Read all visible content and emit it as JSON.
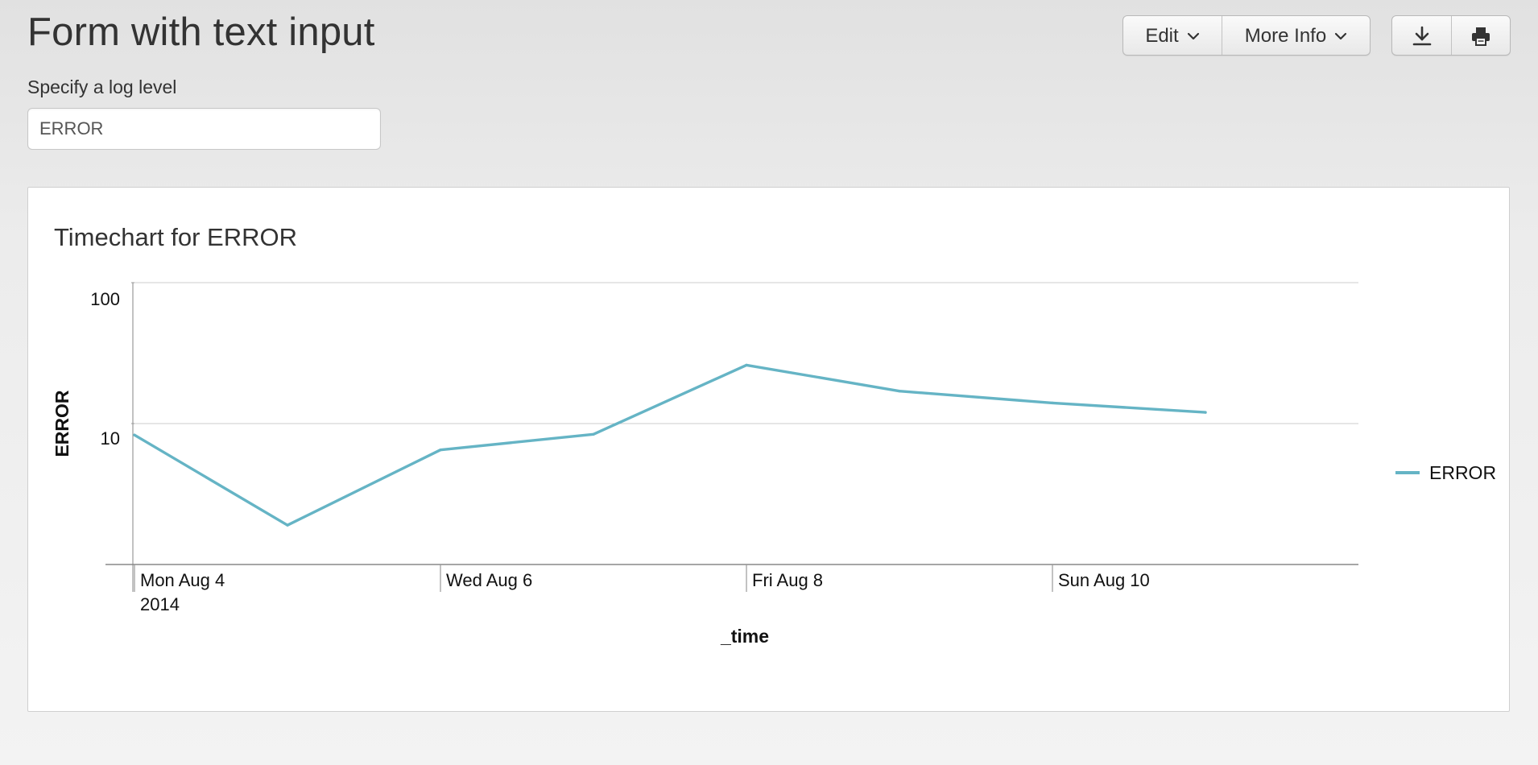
{
  "page": {
    "title": "Form with text input"
  },
  "toolbar": {
    "edit_label": "Edit",
    "more_info_label": "More Info",
    "export_icon": "download-icon",
    "print_icon": "print-icon"
  },
  "form": {
    "label": "Specify a log level",
    "value": "ERROR"
  },
  "panel": {
    "title": "Timechart for ERROR"
  },
  "colors": {
    "series": "#65b4c5"
  },
  "chart_data": {
    "type": "line",
    "title": "Timechart for ERROR",
    "xlabel": "_time",
    "ylabel": "ERROR",
    "yscale": "log",
    "ylim": [
      1,
      100
    ],
    "ytick_labels": [
      "100",
      "10"
    ],
    "xtick_labels": [
      "Mon Aug 4",
      "Wed Aug 6",
      "Fri Aug 8",
      "Sun Aug 10"
    ],
    "xtick_sublabel": "2014",
    "x": [
      "2014-08-04",
      "2014-08-05",
      "2014-08-06",
      "2014-08-07",
      "2014-08-08",
      "2014-08-09",
      "2014-08-10",
      "2014-08-11"
    ],
    "series": [
      {
        "name": "ERROR",
        "values": [
          8.3,
          1.9,
          6.5,
          8.4,
          26,
          17,
          14,
          12
        ]
      }
    ],
    "legend": "right",
    "grid": true
  }
}
